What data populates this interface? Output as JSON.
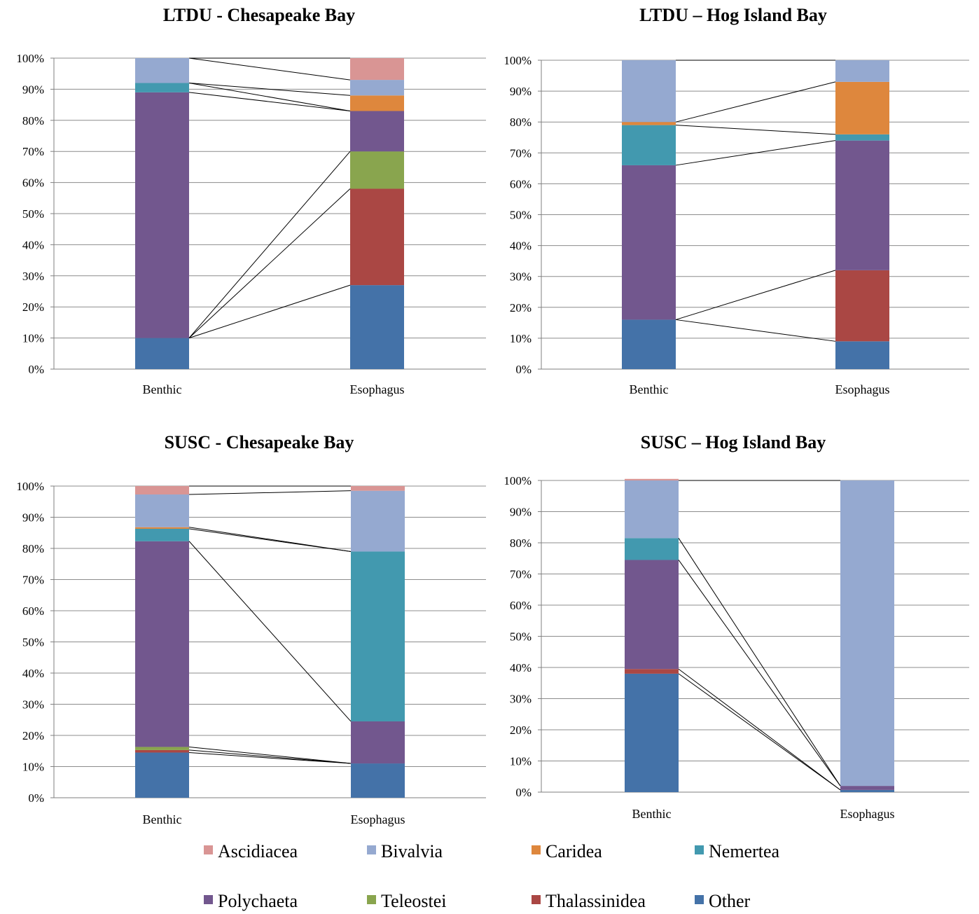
{
  "colors": {
    "Ascidiacea": "#D99594",
    "Bivalvia": "#95A9D0",
    "Caridea": "#DE873D",
    "Nemertea": "#4299AF",
    "Polychaeta": "#72578E",
    "Teleostei": "#89A54E",
    "Thalassinidea": "#AA4744",
    "Other": "#4472A8"
  },
  "legend": {
    "items": [
      "Ascidiacea",
      "Bivalvia",
      "Caridea",
      "Nemertea",
      "Polychaeta",
      "Teleostei",
      "Thalassinidea",
      "Other"
    ]
  },
  "chart_data": [
    {
      "type": "bar",
      "stacked": true,
      "title": "LTDU - Chesapeake Bay",
      "categories": [
        "Benthic",
        "Esophagus"
      ],
      "ylim": [
        0,
        100
      ],
      "yticks": [
        "0%",
        "10%",
        "20%",
        "30%",
        "40%",
        "50%",
        "60%",
        "70%",
        "80%",
        "90%",
        "100%"
      ],
      "grid": true,
      "series": [
        {
          "name": "Other",
          "values": [
            10,
            27
          ]
        },
        {
          "name": "Thalassinidea",
          "values": [
            0,
            31
          ]
        },
        {
          "name": "Teleostei",
          "values": [
            0,
            12
          ]
        },
        {
          "name": "Polychaeta",
          "values": [
            79,
            13
          ]
        },
        {
          "name": "Nemertea",
          "values": [
            3,
            0
          ]
        },
        {
          "name": "Caridea",
          "values": [
            0,
            5
          ]
        },
        {
          "name": "Bivalvia",
          "values": [
            8,
            5
          ]
        },
        {
          "name": "Ascidiacea",
          "values": [
            0,
            7
          ]
        }
      ]
    },
    {
      "type": "bar",
      "stacked": true,
      "title": "LTDU – Hog Island Bay",
      "categories": [
        "Benthic",
        "Esophagus"
      ],
      "ylim": [
        0,
        100
      ],
      "yticks": [
        "0%",
        "10%",
        "20%",
        "30%",
        "40%",
        "50%",
        "60%",
        "70%",
        "80%",
        "90%",
        "100%"
      ],
      "grid": true,
      "series": [
        {
          "name": "Other",
          "values": [
            16,
            9
          ]
        },
        {
          "name": "Thalassinidea",
          "values": [
            0,
            23
          ]
        },
        {
          "name": "Polychaeta",
          "values": [
            50,
            42
          ]
        },
        {
          "name": "Nemertea",
          "values": [
            13,
            2
          ]
        },
        {
          "name": "Caridea",
          "values": [
            1,
            17
          ]
        },
        {
          "name": "Bivalvia",
          "values": [
            20,
            7
          ]
        }
      ]
    },
    {
      "type": "bar",
      "stacked": true,
      "title": "SUSC - Chesapeake Bay",
      "categories": [
        "Benthic",
        "Esophagus"
      ],
      "ylim": [
        0,
        100
      ],
      "yticks": [
        "0%",
        "10%",
        "20%",
        "30%",
        "40%",
        "50%",
        "60%",
        "70%",
        "80%",
        "90%",
        "100%"
      ],
      "grid": true,
      "series": [
        {
          "name": "Other",
          "values": [
            14.5,
            11
          ]
        },
        {
          "name": "Thalassinidea",
          "values": [
            0.8,
            0
          ]
        },
        {
          "name": "Teleostei",
          "values": [
            1,
            0
          ]
        },
        {
          "name": "Polychaeta",
          "values": [
            66,
            13.5
          ]
        },
        {
          "name": "Nemertea",
          "values": [
            4,
            54.5
          ]
        },
        {
          "name": "Caridea",
          "values": [
            0.5,
            0
          ]
        },
        {
          "name": "Bivalvia",
          "values": [
            10.5,
            19.5
          ]
        },
        {
          "name": "Ascidiacea",
          "values": [
            2.7,
            1.5
          ]
        }
      ]
    },
    {
      "type": "bar",
      "stacked": true,
      "title": "SUSC – Hog Island Bay",
      "categories": [
        "Benthic",
        "Esophagus"
      ],
      "ylim": [
        0,
        100
      ],
      "yticks": [
        "0%",
        "10%",
        "20%",
        "30%",
        "40%",
        "50%",
        "60%",
        "70%",
        "80%",
        "90%",
        "100%"
      ],
      "grid": true,
      "series": [
        {
          "name": "Other",
          "values": [
            38,
            0.7
          ]
        },
        {
          "name": "Thalassinidea",
          "values": [
            1.5,
            0
          ]
        },
        {
          "name": "Polychaeta",
          "values": [
            35,
            1.3
          ]
        },
        {
          "name": "Nemertea",
          "values": [
            7,
            0
          ]
        },
        {
          "name": "Bivalvia",
          "values": [
            18.5,
            98
          ]
        },
        {
          "name": "Ascidiacea",
          "values": [
            0.5,
            0
          ]
        }
      ]
    }
  ]
}
